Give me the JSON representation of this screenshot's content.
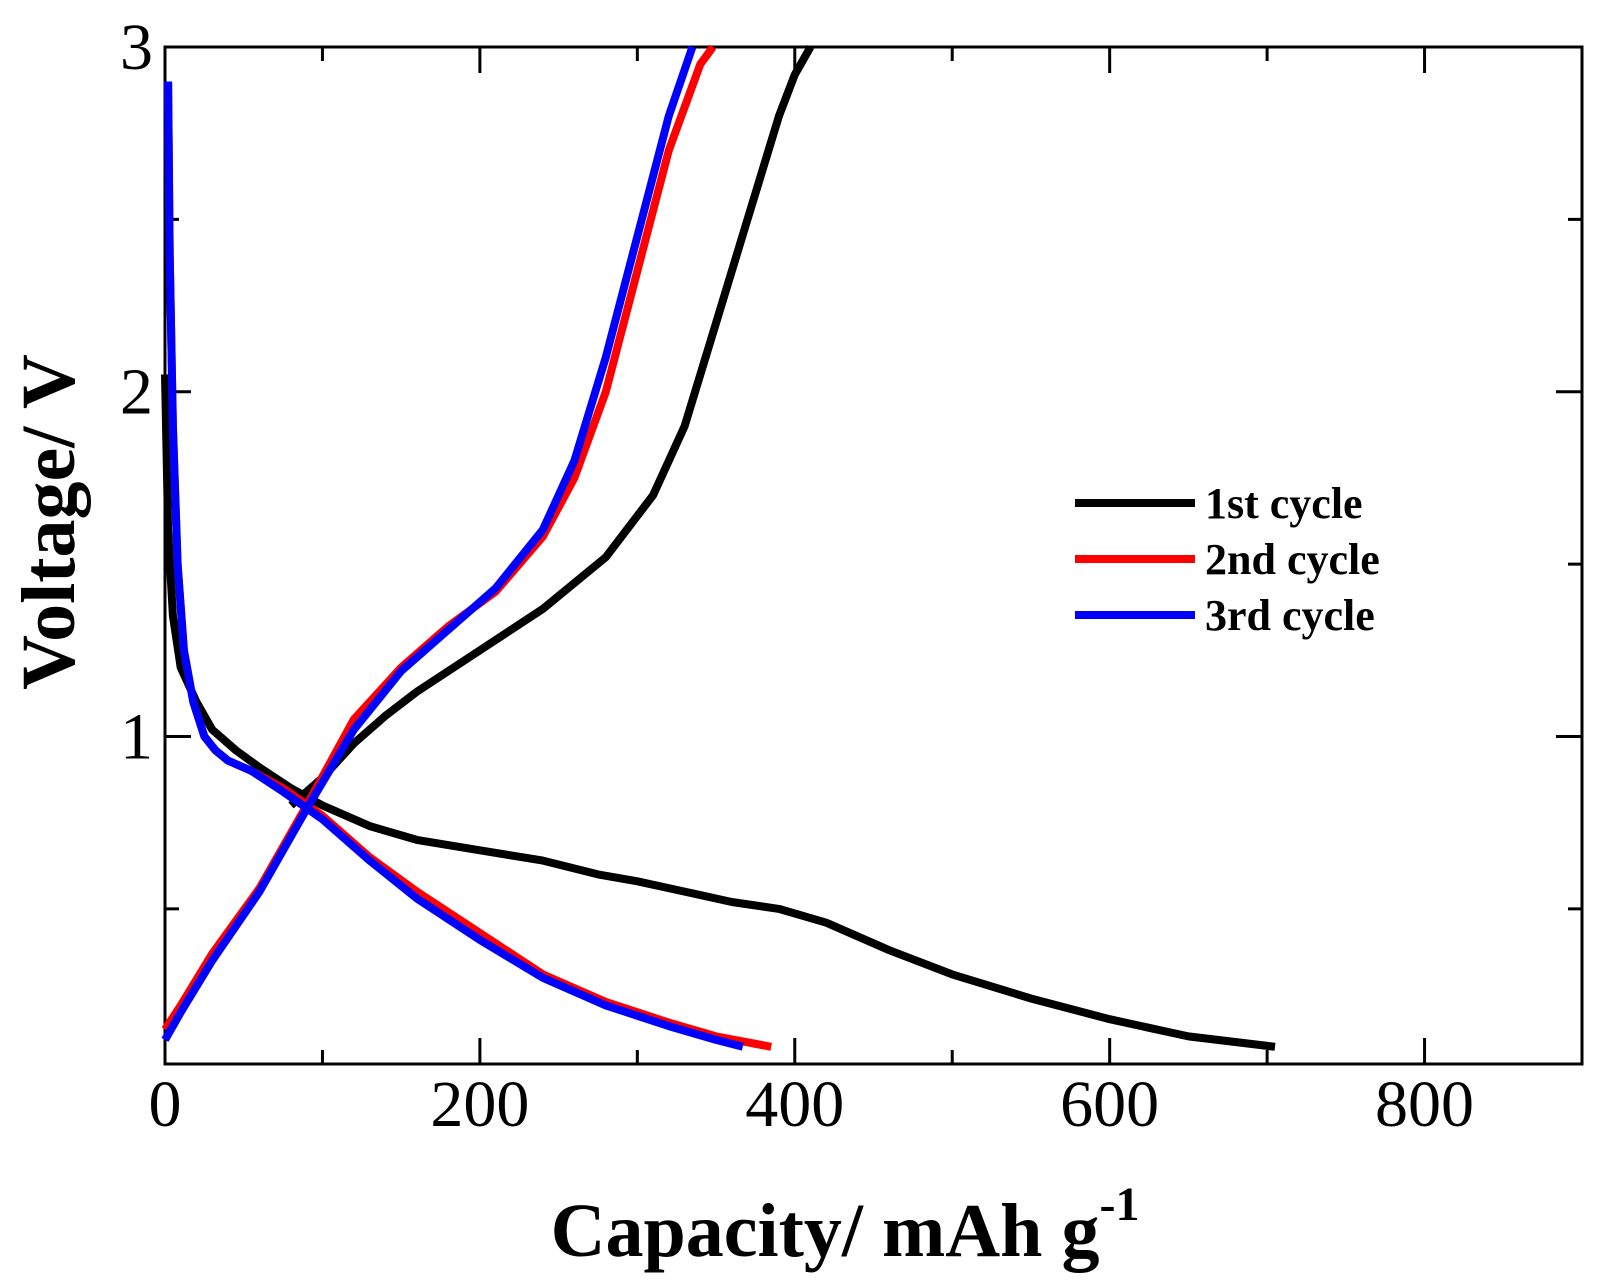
{
  "chart_data": {
    "type": "line",
    "title": "",
    "xlabel": "Capacity/ mAh g",
    "xlabel_superscript": "-1",
    "ylabel": "Voltage/ V",
    "xlim": [
      0,
      900
    ],
    "ylim": [
      0.05,
      3
    ],
    "x_ticks": [
      0,
      200,
      400,
      600,
      800
    ],
    "x_tick_labels": [
      "0",
      "200",
      "400",
      "600",
      "800"
    ],
    "x_minor_ticks": [
      100,
      300,
      500,
      700
    ],
    "y_ticks": [
      1,
      2,
      3
    ],
    "y_tick_labels": [
      "1",
      "2",
      "3"
    ],
    "y_minor_ticks": [
      0.5,
      1.5,
      2.5
    ],
    "grid": false,
    "legend_position": "right-middle",
    "series": [
      {
        "name": "1st cycle",
        "color": "#000000",
        "discharge": {
          "x": [
            0,
            2,
            5,
            10,
            20,
            30,
            45,
            60,
            80,
            100,
            130,
            160,
            200,
            240,
            275,
            300,
            330,
            360,
            390,
            420,
            460,
            500,
            550,
            600,
            650,
            705
          ],
          "y": [
            2.05,
            1.6,
            1.35,
            1.2,
            1.1,
            1.02,
            0.96,
            0.91,
            0.85,
            0.8,
            0.74,
            0.7,
            0.67,
            0.64,
            0.6,
            0.58,
            0.55,
            0.52,
            0.5,
            0.46,
            0.38,
            0.31,
            0.24,
            0.18,
            0.13,
            0.1
          ]
        },
        "charge": {
          "x": [
            80,
            100,
            120,
            140,
            160,
            200,
            240,
            280,
            310,
            330,
            350,
            370,
            390,
            400,
            410
          ],
          "y": [
            0.8,
            0.88,
            0.98,
            1.06,
            1.13,
            1.25,
            1.37,
            1.52,
            1.7,
            1.9,
            2.2,
            2.5,
            2.8,
            2.92,
            3.0
          ]
        }
      },
      {
        "name": "2nd cycle",
        "color": "#ff0000",
        "discharge": {
          "x": [
            2,
            3,
            5,
            8,
            12,
            18,
            25,
            32,
            40,
            55,
            75,
            100,
            130,
            160,
            200,
            240,
            280,
            320,
            350,
            385
          ],
          "y": [
            2.9,
            2.4,
            1.9,
            1.5,
            1.25,
            1.1,
            1.0,
            0.96,
            0.93,
            0.9,
            0.85,
            0.77,
            0.65,
            0.55,
            0.43,
            0.31,
            0.23,
            0.17,
            0.13,
            0.1
          ]
        },
        "charge": {
          "x": [
            0,
            10,
            30,
            60,
            90,
            120,
            150,
            180,
            210,
            240,
            260,
            280,
            300,
            320,
            340,
            348
          ],
          "y": [
            0.15,
            0.22,
            0.37,
            0.56,
            0.8,
            1.05,
            1.2,
            1.32,
            1.42,
            1.58,
            1.75,
            2.0,
            2.35,
            2.7,
            2.95,
            3.0
          ]
        }
      },
      {
        "name": "3rd cycle",
        "color": "#0000ff",
        "discharge": {
          "x": [
            2,
            3,
            5,
            8,
            12,
            18,
            25,
            32,
            40,
            55,
            75,
            100,
            130,
            160,
            200,
            240,
            280,
            320,
            350,
            367
          ],
          "y": [
            2.9,
            2.4,
            1.9,
            1.5,
            1.25,
            1.1,
            1.0,
            0.96,
            0.93,
            0.9,
            0.84,
            0.76,
            0.64,
            0.53,
            0.41,
            0.3,
            0.22,
            0.16,
            0.12,
            0.1
          ]
        },
        "charge": {
          "x": [
            0,
            10,
            30,
            60,
            90,
            120,
            150,
            180,
            210,
            240,
            260,
            280,
            300,
            320,
            335
          ],
          "y": [
            0.12,
            0.2,
            0.35,
            0.55,
            0.79,
            1.02,
            1.19,
            1.31,
            1.43,
            1.6,
            1.8,
            2.1,
            2.45,
            2.8,
            3.0
          ]
        }
      }
    ]
  }
}
